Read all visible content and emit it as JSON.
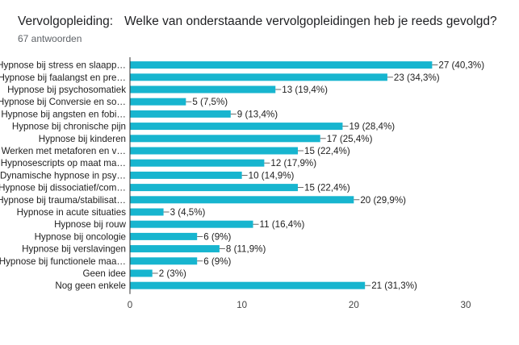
{
  "title_prefix": "Vervolgopleiding:",
  "title_question": "Welke van onderstaande vervolgopleidingen heb je reeds gevolgd?",
  "subtitle": "67 antwoorden",
  "colors": {
    "bar": "#17b5cf",
    "axis": "#333333",
    "grid": "#e0e0e0"
  },
  "chart_data": {
    "type": "bar",
    "orientation": "horizontal",
    "title": "Vervolgopleiding:   Welke van onderstaande vervolgopleidingen heb je reeds gevolgd?",
    "categories": [
      "Hypnose bij stress en slaapp…",
      "Hypnose bij faalangst en pre…",
      "Hypnose bij psychosomatiek",
      "Hypnose bij Conversie en so…",
      "Hypnose bij angsten en fobi…",
      "Hypnose bij chronische pijn",
      "Hypnose bij kinderen",
      "Werken met metaforen en v…",
      "Hypnosescripts op maat ma…",
      "Dynamische hypnose in psy…",
      "Hypnose bij dissociatief/com…",
      "Hypnose bij trauma/stabilisat…",
      "Hypnose in acute situaties",
      "Hypnose bij rouw",
      "Hypnose bij oncologie",
      "Hypnose bij verslavingen",
      "Hypnose bij functionele maa…",
      "Geen idee",
      "Nog geen enkele"
    ],
    "values": [
      27,
      23,
      13,
      5,
      9,
      19,
      17,
      15,
      12,
      10,
      15,
      20,
      3,
      11,
      6,
      8,
      6,
      2,
      21
    ],
    "data_labels": [
      "27 (40,3%)",
      "23 (34,3%)",
      "13 (19,4%)",
      "5 (7,5%)",
      "9 (13,4%)",
      "19 (28,4%)",
      "17 (25,4%)",
      "15 (22,4%)",
      "12 (17,9%)",
      "10 (14,9%)",
      "15 (22,4%)",
      "20 (29,9%)",
      "3 (4,5%)",
      "11 (16,4%)",
      "6 (9%)",
      "8 (11,9%)",
      "6 (9%)",
      "2 (3%)",
      "21 (31,3%)"
    ],
    "xlim": [
      0,
      30
    ],
    "xticks": [
      "0",
      "10",
      "20",
      "30"
    ],
    "xlabel": "",
    "ylabel": ""
  }
}
